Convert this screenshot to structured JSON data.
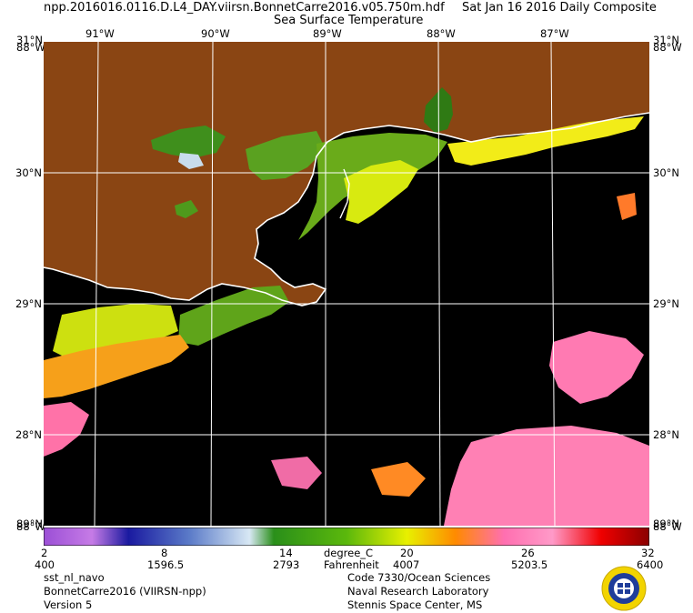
{
  "header": {
    "filename": "npp.2016016.0116.D.L4_DAY.viirsn.BonnetCarre2016.v05.750m.hdf",
    "date": "Sat Jan 16 2016 Daily Composite",
    "product": "Sea Surface Temperature"
  },
  "map": {
    "lon_labels": [
      "91°W",
      "90°W",
      "89°W",
      "88°W",
      "87°W"
    ],
    "lat_labels": [
      "30°N",
      "29°N",
      "28°N"
    ],
    "corner_top": [
      "31°N",
      "88°W"
    ],
    "corner_bottom": [
      "89°N",
      "88°W"
    ],
    "colors": {
      "land": "#8a4513",
      "ocean_missing": "#000000",
      "grid": "#ffffff",
      "coast": "#ffffff"
    }
  },
  "colorbar": {
    "units_c": "degree_C",
    "units_f": "Fahrenheit",
    "ticks_c": [
      "2",
      "8",
      "14",
      "20",
      "26",
      "32"
    ],
    "ticks_f": [
      "400",
      "1596.5",
      "2793",
      "4007",
      "5203.5",
      "6400"
    ],
    "colors": [
      "#9b4fd6",
      "#1a1aa0",
      "#d8e8f4",
      "#2a8f1a",
      "#e8f000",
      "#ff8a00",
      "#ff6fb0",
      "#f00000",
      "#8a0000"
    ]
  },
  "footer": {
    "left": [
      "sst_nl_navo",
      "BonnetCarre2016 (VIIRSN-npp)",
      "Version 5"
    ],
    "right": [
      "Code 7330/Ocean Sciences",
      "Naval Research Laboratory",
      "Stennis Space Center, MS"
    ]
  },
  "seal_icon": "navy-seal-icon"
}
